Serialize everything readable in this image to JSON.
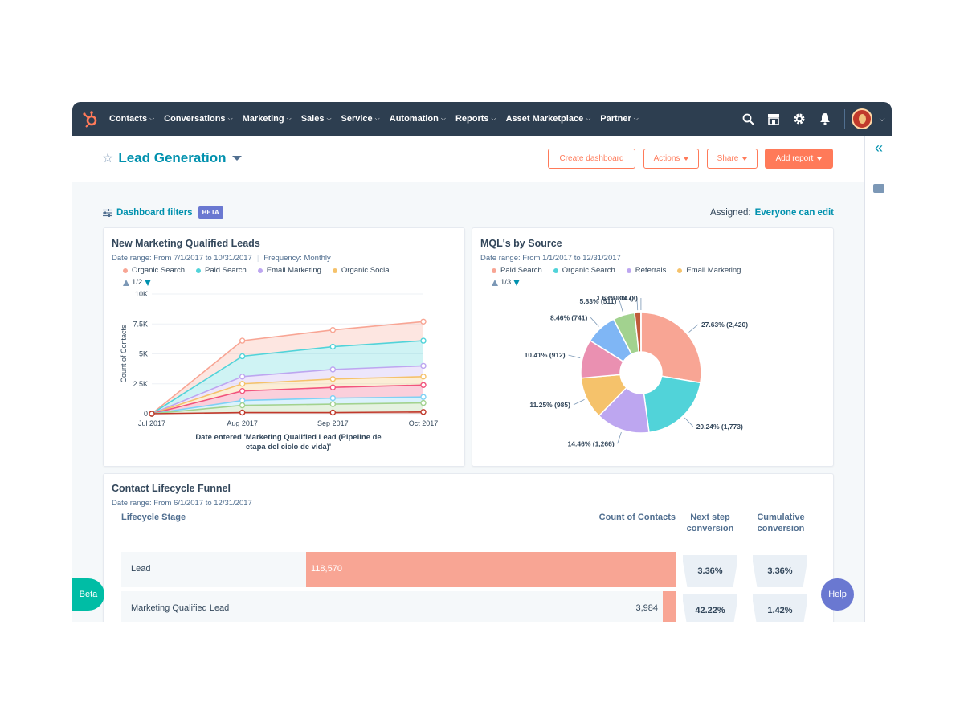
{
  "nav": {
    "items": [
      {
        "label": "Contacts"
      },
      {
        "label": "Conversations"
      },
      {
        "label": "Marketing"
      },
      {
        "label": "Sales"
      },
      {
        "label": "Service"
      },
      {
        "label": "Automation"
      },
      {
        "label": "Reports"
      },
      {
        "label": "Asset Marketplace"
      },
      {
        "label": "Partner"
      }
    ],
    "chevron": "⌄",
    "icons": [
      "search-icon",
      "marketplace-icon",
      "gear-icon",
      "bell-icon",
      "avatar"
    ]
  },
  "header": {
    "title": "Lead Generation",
    "create_dashboard": "Create dashboard",
    "actions": "Actions",
    "share": "Share",
    "add_report": "Add report"
  },
  "filters": {
    "label": "Dashboard filters",
    "badge": "BETA",
    "assigned_label": "Assigned:",
    "assigned_value": "Everyone can edit"
  },
  "leads_card": {
    "title": "New Marketing Qualified Leads",
    "subtitle": "Date range: From 7/1/2017 to 10/31/2017",
    "frequency": "Frequency: Monthly",
    "legend": [
      {
        "label": "Organic Search",
        "color": "#f8a594"
      },
      {
        "label": "Paid Search",
        "color": "#51d3d9"
      },
      {
        "label": "Email Marketing",
        "color": "#bda6f0"
      },
      {
        "label": "Organic Social",
        "color": "#f5c26b"
      }
    ],
    "pager": "1/2"
  },
  "mql_card": {
    "title": "MQL's by Source",
    "subtitle": "Date range: From 1/1/2017 to 12/31/2017",
    "legend": [
      {
        "label": "Paid Search",
        "color": "#f8a594"
      },
      {
        "label": "Organic Search",
        "color": "#51d3d9"
      },
      {
        "label": "Referrals",
        "color": "#bda6f0"
      },
      {
        "label": "Email Marketing",
        "color": "#f5c26b"
      }
    ],
    "pager": "1/3"
  },
  "chart_data": [
    {
      "type": "area",
      "title": "New Marketing Qualified Leads",
      "xlabel": "Date entered 'Marketing Qualified Lead (Pipeline de etapa del ciclo de vida)'",
      "ylabel": "Count of Contacts",
      "categories": [
        "Jul 2017",
        "Aug 2017",
        "Sep 2017",
        "Oct 2017"
      ],
      "ylim": [
        0,
        10000
      ],
      "yticks": [
        "0",
        "2.5K",
        "5K",
        "7.5K",
        "10K"
      ],
      "series": [
        {
          "color": "#f8a594",
          "values": [
            0,
            6100,
            7000,
            7700
          ]
        },
        {
          "color": "#51d3d9",
          "values": [
            0,
            4800,
            5600,
            6100
          ]
        },
        {
          "color": "#bda6f0",
          "values": [
            0,
            3100,
            3700,
            4000
          ]
        },
        {
          "color": "#f5c26b",
          "values": [
            0,
            2500,
            2900,
            3100
          ]
        },
        {
          "color": "#f2547d",
          "values": [
            0,
            1900,
            2200,
            2400
          ]
        },
        {
          "color": "#7fd1f5",
          "values": [
            0,
            1100,
            1300,
            1400
          ]
        },
        {
          "color": "#a2d28f",
          "values": [
            0,
            700,
            800,
            900
          ]
        },
        {
          "color": "#c0392b",
          "values": [
            0,
            100,
            100,
            150
          ]
        }
      ]
    },
    {
      "type": "pie",
      "title": "MQL's by Source",
      "slices": [
        {
          "label": "27.63% (2,420)",
          "value": 2420,
          "color": "#f8a594"
        },
        {
          "label": "20.24% (1,773)",
          "value": 1773,
          "color": "#51d3d9"
        },
        {
          "label": "14.46% (1,266)",
          "value": 1266,
          "color": "#bda6f0"
        },
        {
          "label": "11.25% (985)",
          "value": 985,
          "color": "#f5c26b"
        },
        {
          "label": "10.41% (912)",
          "value": 912,
          "color": "#ea90b1"
        },
        {
          "label": "8.46% (741)",
          "value": 741,
          "color": "#7fb6f5"
        },
        {
          "label": "5.83% (511)",
          "value": 511,
          "color": "#a2d28f"
        },
        {
          "label": "1.68% (147)",
          "value": 147,
          "color": "#c05b3a"
        },
        {
          "label": "0.03% (3)",
          "value": 3,
          "color": "#4a6fa5"
        }
      ]
    }
  ],
  "funnel": {
    "title": "Contact Lifecycle Funnel",
    "subtitle": "Date range: From 6/1/2017 to 12/31/2017",
    "col_stage": "Lifecycle Stage",
    "col_count": "Count of Contacts",
    "col_next_1": "Next step",
    "col_next_2": "conversion",
    "col_cum_1": "Cumulative",
    "col_cum_2": "conversion",
    "rows": [
      {
        "stage": "Lead",
        "count": "118,570",
        "fraction": 1.0,
        "next": "3.36%",
        "cumulative": "3.36%"
      },
      {
        "stage": "Marketing Qualified Lead",
        "count": "3,984",
        "fraction": 0.034,
        "next": "42.22%",
        "cumulative": "1.42%"
      }
    ]
  },
  "beta_pill": "Beta",
  "help_pill": "Help",
  "colors": {
    "accent": "#ff7a59",
    "nav_bg": "#2d3e50",
    "link": "#0091ae",
    "bar": "#f8a594"
  }
}
